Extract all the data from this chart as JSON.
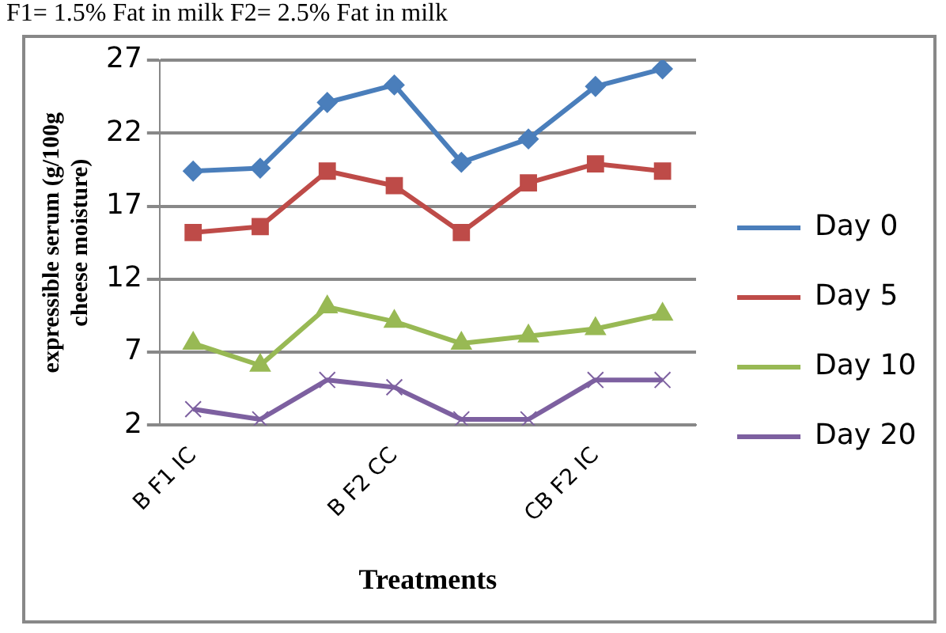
{
  "chart_data": {
    "type": "line",
    "xlabel": "Treatments",
    "ylabel": "expressible serum (g/100g cheese moisture)",
    "annotations": [
      "F1= 1.5% Fat in milk F2= 2.5% Fat in milk"
    ],
    "categories": [
      "B F1 IC",
      null,
      null,
      "B F2 CC",
      null,
      null,
      "CB F2 IC",
      null
    ],
    "ylim": [
      2,
      27
    ],
    "yticks": [
      2,
      7,
      12,
      17,
      22,
      27
    ],
    "grid": "y",
    "legend": "right",
    "series": [
      {
        "name": "Day 0",
        "color": "#4a7ebb",
        "marker": "diamond",
        "values": [
          19.4,
          19.6,
          24.1,
          25.3,
          20.0,
          21.6,
          25.2,
          26.4
        ]
      },
      {
        "name": "Day 5",
        "color": "#be4b48",
        "marker": "square",
        "values": [
          15.2,
          15.6,
          19.4,
          18.4,
          15.2,
          18.6,
          19.9,
          19.4
        ]
      },
      {
        "name": "Day 10",
        "color": "#98b954",
        "marker": "triangle",
        "values": [
          7.6,
          6.1,
          10.1,
          9.1,
          7.6,
          8.1,
          8.6,
          9.6
        ]
      },
      {
        "name": "Day 20",
        "color": "#7d60a0",
        "marker": "cross",
        "values": [
          3.1,
          2.4,
          5.1,
          4.6,
          2.4,
          2.4,
          5.1,
          5.1
        ]
      }
    ]
  }
}
